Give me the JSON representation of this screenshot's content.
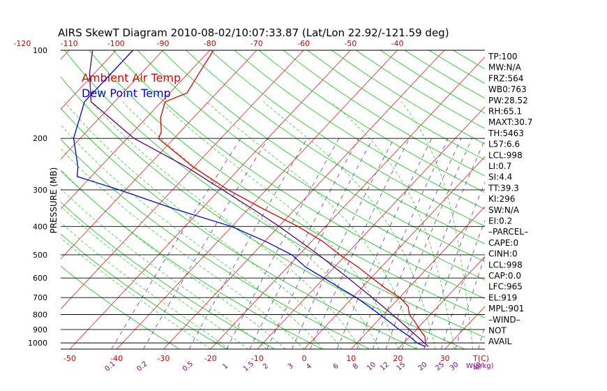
{
  "chart_data": {
    "type": "line",
    "title": "AIRS SkewT Diagram 2010-08-02/10:07:33.87 (Lat/Lon 22.92/-121.59 deg)",
    "ylabel": "PRESSURE (MB)",
    "x_unit_label": "T(C)",
    "w_unit_label": "W(g/kg)",
    "y_scale": "log",
    "pressure_range": [
      100,
      1050
    ],
    "pressure_ticks": [
      100,
      200,
      300,
      400,
      500,
      600,
      700,
      800,
      900,
      1000
    ],
    "bottom_temp_ticks": [
      -50,
      -40,
      -30,
      -20,
      -10,
      0,
      10,
      20,
      30
    ],
    "top_temp_ticks": [
      -120,
      -110,
      -100,
      -90,
      -80,
      -70,
      -60,
      -50,
      -40
    ],
    "mixing_ratio_ticks": [
      "0.1",
      "0.2",
      "0.5",
      "1",
      "1.5",
      "2",
      "3",
      "4",
      "6",
      "8",
      "10",
      "12",
      "15",
      "20",
      "25",
      "30",
      "40"
    ],
    "series": [
      {
        "name": "Ambient Air Temp",
        "color": "#dd0000",
        "p": [
          100,
          120,
          140,
          150,
          170,
          190,
          200,
          250,
          300,
          350,
          400,
          450,
          500,
          550,
          600,
          650,
          700,
          750,
          800,
          850,
          900,
          950,
          1000
        ],
        "t": [
          -79.2,
          -77.7,
          -76.3,
          -79.2,
          -77,
          -74,
          -73.3,
          -60.3,
          -48.1,
          -36.5,
          -25.9,
          -17.6,
          -11.3,
          -5,
          0.2,
          5.1,
          10.1,
          13.6,
          15.5,
          18.3,
          20.7,
          23.2,
          24.6
        ]
      },
      {
        "name": "Dew Point Temp",
        "color": "#0000dd",
        "p": [
          100,
          150,
          200,
          250,
          270,
          300,
          350,
          400,
          450,
          500,
          550,
          600,
          650,
          700,
          750,
          800,
          850,
          900,
          950,
          1000,
          1030
        ],
        "t": [
          -96.4,
          -96.4,
          -91.4,
          -84.8,
          -83,
          -71.3,
          -55.3,
          -40.1,
          -29.8,
          -21.5,
          -16.2,
          -10.1,
          -4.5,
          0.8,
          5.2,
          9.2,
          12.9,
          16.3,
          19.9,
          22.8,
          25.4
        ]
      },
      {
        "name": "Parcel",
        "color": "#5a0080",
        "p": [
          100,
          120,
          150,
          200,
          250,
          300,
          350,
          400,
          500,
          600,
          700,
          800,
          900,
          1000,
          1030
        ],
        "t": [
          -105,
          -101,
          -95,
          -78.5,
          -61.7,
          -49.3,
          -38.8,
          -29.9,
          -15.8,
          -4.9,
          4.2,
          11.9,
          18.5,
          24.4,
          26
        ]
      }
    ]
  },
  "legend": {
    "ambient": "Ambient Air Temp",
    "dew": "Dew Point Temp",
    "ambient_color": "#dd0000",
    "dew_color": "#0000dd"
  },
  "indices": [
    "TP:100",
    "MW:N/A",
    "FRZ:564",
    "WB0:763",
    "PW:28.52",
    "RH:65.1",
    "MAXT:30.7",
    "TH:5463",
    "L57:6.6",
    "LCL:998",
    "LI:0.7",
    "SI:4.4",
    "TT:39.3",
    "KI:296",
    "SW:N/A",
    "EI:0.2",
    "–PARCEL–",
    "CAPE:0",
    "CINH:0",
    "LCL:998",
    "CAP:0.0",
    "LFC:965",
    "EL:919",
    "MPL:901",
    "–WIND–",
    " NOT",
    " AVAIL"
  ]
}
